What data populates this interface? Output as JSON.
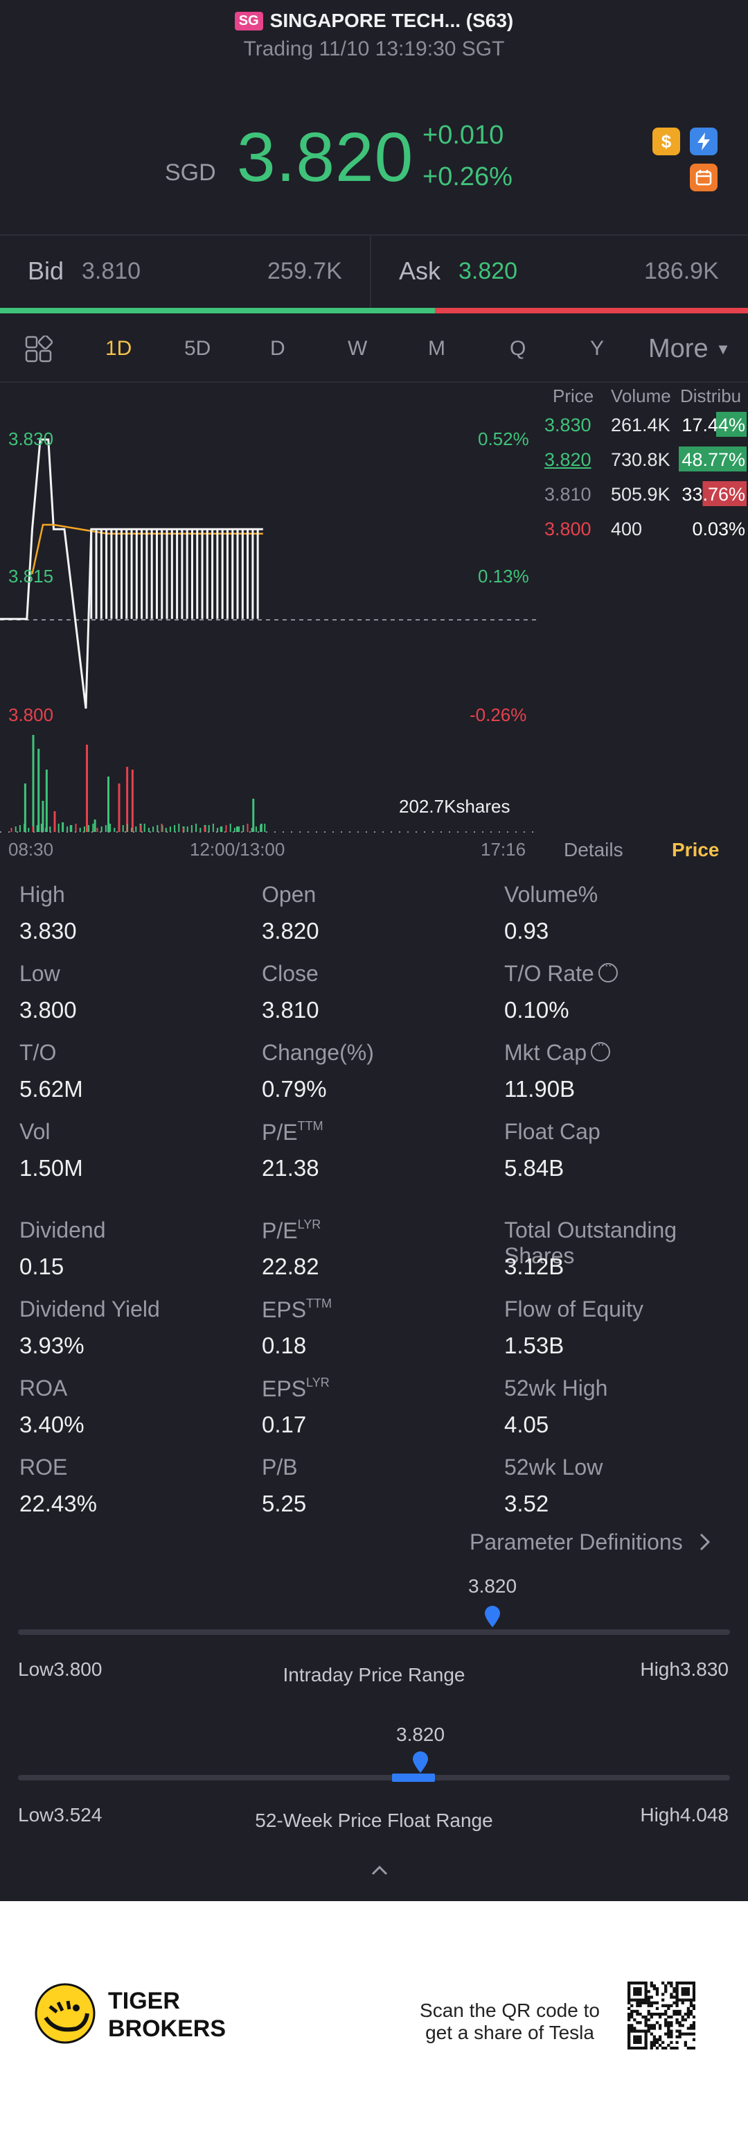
{
  "header": {
    "market_badge": "SG",
    "title": "SINGAPORE TECH... (S63)",
    "trading": "Trading 11/10 13:19:30 SGT",
    "currency": "SGD",
    "price": "3.820",
    "change_abs": "+0.010",
    "change_pct": "+0.26%",
    "icons": [
      "dollar-icon",
      "lightning-icon",
      "calendar-icon"
    ]
  },
  "quote": {
    "bid_label": "Bid",
    "bid_price": "3.810",
    "bid_size": "259.7K",
    "ask_label": "Ask",
    "ask_price": "3.820",
    "ask_size": "186.9K",
    "bid_ratio": 0.58
  },
  "tabs": {
    "items": [
      "1D",
      "5D",
      "D",
      "W",
      "M",
      "Q",
      "Y"
    ],
    "active": "1D",
    "more": "More"
  },
  "chart_data": {
    "type": "line",
    "title": "",
    "y_price_labels": [
      "3.830",
      "3.815",
      "3.800"
    ],
    "y_pct_labels": [
      "0.52%",
      "0.13%",
      "-0.26%"
    ],
    "x_labels": [
      "08:30",
      "12:00/13:00",
      "17:16"
    ],
    "prev_close": 3.81,
    "ylim": [
      3.8,
      3.83
    ],
    "volume_label": "202.7Kshares",
    "price_series": [
      {
        "t": 0,
        "v": 3.81
      },
      {
        "t": 0.05,
        "v": 3.81
      },
      {
        "t": 0.06,
        "v": 3.82
      },
      {
        "t": 0.075,
        "v": 3.83
      },
      {
        "t": 0.09,
        "v": 3.83
      },
      {
        "t": 0.1,
        "v": 3.82
      },
      {
        "t": 0.12,
        "v": 3.82
      },
      {
        "t": 0.14,
        "v": 3.81
      },
      {
        "t": 0.16,
        "v": 3.8
      },
      {
        "t": 0.17,
        "v": 3.82
      },
      {
        "t": 0.49,
        "v": 3.82
      }
    ],
    "avg_series": [
      {
        "t": 0.06,
        "v": 3.815
      },
      {
        "t": 0.08,
        "v": 3.8205
      },
      {
        "t": 0.1,
        "v": 3.8205
      },
      {
        "t": 0.2,
        "v": 3.8195
      },
      {
        "t": 0.3,
        "v": 3.8195
      },
      {
        "t": 0.49,
        "v": 3.8195
      }
    ]
  },
  "order_book": {
    "headers": [
      "Price",
      "Volume",
      "Distribu"
    ],
    "rows": [
      {
        "price": "3.830",
        "volume": "261.4K",
        "dist": "17.44%",
        "kind": "ask"
      },
      {
        "price": "3.820",
        "volume": "730.8K",
        "dist": "48.77%",
        "kind": "ask"
      },
      {
        "price": "3.810",
        "volume": "505.9K",
        "dist": "33.76%",
        "kind": "bid"
      },
      {
        "price": "3.800",
        "volume": "400",
        "dist": "0.03%",
        "kind": "low"
      }
    ]
  },
  "chart_tabs": {
    "details": "Details",
    "price": "Price"
  },
  "stats": [
    {
      "label": "High",
      "value": "3.830"
    },
    {
      "label": "Open",
      "value": "3.820"
    },
    {
      "label": "Volume%",
      "value": "0.93"
    },
    {
      "label": "Low",
      "value": "3.800"
    },
    {
      "label": "Close",
      "value": "3.810"
    },
    {
      "label": "T/O Rate",
      "value": "0.10%"
    },
    {
      "label": "T/O",
      "value": "5.62M"
    },
    {
      "label": "Change(%)",
      "value": "0.79%"
    },
    {
      "label": "Mkt Cap",
      "value": "11.90B"
    },
    {
      "label": "Vol",
      "value": "1.50M"
    },
    {
      "label": "P/E",
      "sup": "TTM",
      "value": "21.38"
    },
    {
      "label": "Float Cap",
      "value": "5.84B"
    },
    {
      "label": "Dividend",
      "value": "0.15"
    },
    {
      "label": "P/E",
      "sup": "LYR",
      "value": "22.82"
    },
    {
      "label": "Total Outstanding Shares",
      "value": "3.12B"
    },
    {
      "label": "Dividend Yield",
      "value": "3.93%"
    },
    {
      "label": "EPS",
      "sup": "TTM",
      "value": "0.18"
    },
    {
      "label": "Flow of Equity",
      "value": "1.53B"
    },
    {
      "label": "ROA",
      "value": "3.40%"
    },
    {
      "label": "EPS",
      "sup": "LYR",
      "value": "0.17"
    },
    {
      "label": "52wk High",
      "value": "4.05"
    },
    {
      "label": "ROE",
      "value": "22.43%"
    },
    {
      "label": "P/B",
      "value": "5.25"
    },
    {
      "label": "52wk Low",
      "value": "3.52"
    }
  ],
  "param_defs": "Parameter Definitions",
  "intraday_range": {
    "title": "Intraday Price Range",
    "low": "Low3.800",
    "high": "High3.830",
    "current": "3.820",
    "position": 0.67
  },
  "week52_range": {
    "title": "52-Week Price Float Range",
    "low": "Low3.524",
    "high": "High4.048",
    "current": "3.820",
    "position": 0.56
  },
  "footer": {
    "brand_line1": "TIGER",
    "brand_line2": "BROKERS",
    "scan_text": "Scan the QR code to get a share of Tesla"
  }
}
